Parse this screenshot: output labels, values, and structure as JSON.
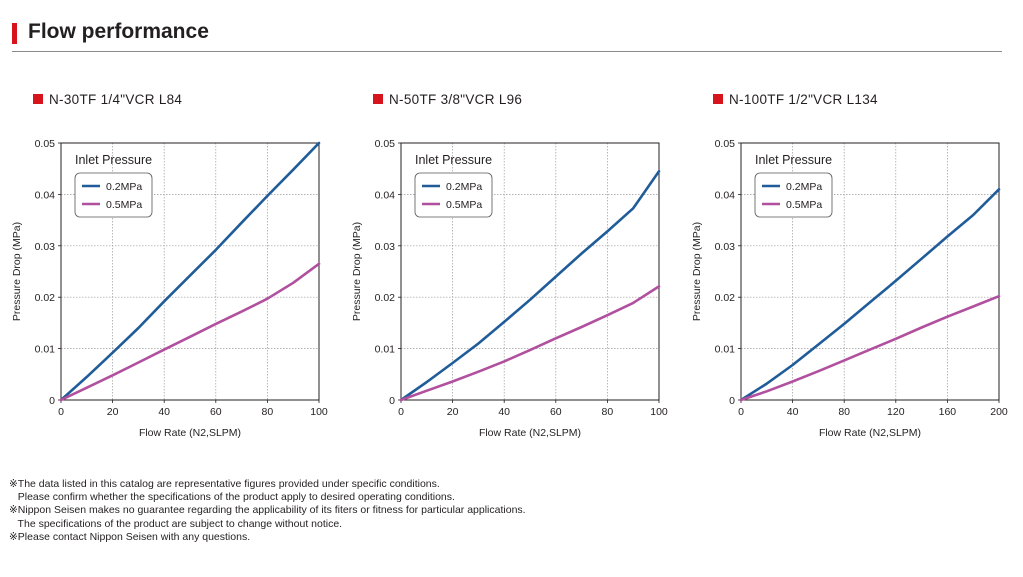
{
  "header": {
    "title": "Flow performance"
  },
  "colors": {
    "accent_red": "#d7141c",
    "series_0_2": "#1f5c99",
    "series_0_5": "#b0509e"
  },
  "chart_data": [
    {
      "type": "line",
      "title": "N-30TF 1/4\"VCR L84",
      "xlabel": "Flow Rate (N2,SLPM)",
      "ylabel": "Pressure Drop (MPa)",
      "xlim": [
        0,
        100
      ],
      "ylim": [
        0,
        0.05
      ],
      "xticks": [
        "0",
        "20",
        "40",
        "60",
        "80",
        "100"
      ],
      "yticks": [
        "0",
        "0.01",
        "0.02",
        "0.03",
        "0.04",
        "0.05"
      ],
      "grid": true,
      "legend_title": "Inlet Pressure",
      "legend_position": "top-left",
      "series": [
        {
          "name": "0.2MPa",
          "color": "#1f5c99",
          "x": [
            0,
            10,
            20,
            30,
            40,
            50,
            60,
            70,
            80,
            90,
            100
          ],
          "y": [
            0,
            0.0045,
            0.0092,
            0.014,
            0.0192,
            0.0242,
            0.0292,
            0.0345,
            0.0397,
            0.0448,
            0.0502
          ]
        },
        {
          "name": "0.5MPa",
          "color": "#b0509e",
          "x": [
            0,
            10,
            20,
            30,
            40,
            50,
            60,
            70,
            80,
            90,
            100
          ],
          "y": [
            0,
            0.0024,
            0.0048,
            0.0073,
            0.0098,
            0.0123,
            0.0148,
            0.0172,
            0.0197,
            0.0228,
            0.0265
          ]
        }
      ]
    },
    {
      "type": "line",
      "title": "N-50TF 3/8\"VCR L96",
      "xlabel": "Flow Rate (N2,SLPM)",
      "ylabel": "Pressure Drop (MPa)",
      "xlim": [
        0,
        100
      ],
      "ylim": [
        0,
        0.05
      ],
      "xticks": [
        "0",
        "20",
        "40",
        "60",
        "80",
        "100"
      ],
      "yticks": [
        "0",
        "0.01",
        "0.02",
        "0.03",
        "0.04",
        "0.05"
      ],
      "grid": true,
      "legend_title": "Inlet Pressure",
      "legend_position": "top-left",
      "series": [
        {
          "name": "0.2MPa",
          "color": "#1f5c99",
          "x": [
            0,
            10,
            20,
            30,
            40,
            50,
            60,
            70,
            80,
            90,
            100
          ],
          "y": [
            0,
            0.0035,
            0.0072,
            0.011,
            0.0152,
            0.0195,
            0.024,
            0.0285,
            0.0328,
            0.0373,
            0.0445
          ]
        },
        {
          "name": "0.5MPa",
          "color": "#b0509e",
          "x": [
            0,
            10,
            20,
            30,
            40,
            50,
            60,
            70,
            80,
            90,
            100
          ],
          "y": [
            0,
            0.0018,
            0.0036,
            0.0055,
            0.0075,
            0.0097,
            0.012,
            0.0142,
            0.0165,
            0.0189,
            0.0221
          ]
        }
      ]
    },
    {
      "type": "line",
      "title": "N-100TF 1/2\"VCR L134",
      "xlabel": "Flow Rate (N2,SLPM)",
      "ylabel": "Pressure Drop (MPa)",
      "xlim": [
        0,
        200
      ],
      "ylim": [
        0,
        0.05
      ],
      "xticks": [
        "0",
        "40",
        "80",
        "120",
        "160",
        "200"
      ],
      "yticks": [
        "0",
        "0.01",
        "0.02",
        "0.03",
        "0.04",
        "0.05"
      ],
      "grid": true,
      "legend_title": "Inlet Pressure",
      "legend_position": "top-left",
      "series": [
        {
          "name": "0.2MPa",
          "color": "#1f5c99",
          "x": [
            0,
            20,
            40,
            60,
            80,
            100,
            120,
            140,
            160,
            180,
            200
          ],
          "y": [
            0,
            0.0032,
            0.0068,
            0.0108,
            0.0148,
            0.019,
            0.0232,
            0.0275,
            0.0318,
            0.036,
            0.041
          ]
        },
        {
          "name": "0.5MPa",
          "color": "#b0509e",
          "x": [
            0,
            20,
            40,
            60,
            80,
            100,
            120,
            140,
            160,
            180,
            200
          ],
          "y": [
            0,
            0.0017,
            0.0036,
            0.0056,
            0.0077,
            0.0098,
            0.0119,
            0.0141,
            0.0162,
            0.0182,
            0.0202
          ]
        }
      ]
    }
  ],
  "notes": [
    "※The data listed in this catalog are representative figures provided under specific conditions.",
    "   Please confirm whether the specifications of the product apply to desired operating conditions.",
    "※Nippon Seisen makes no guarantee regarding the applicability of its fiters or fitness for particular applications.",
    "   The specifications of the product are subject to change without notice.",
    "※Please contact Nippon Seisen with any questions."
  ]
}
